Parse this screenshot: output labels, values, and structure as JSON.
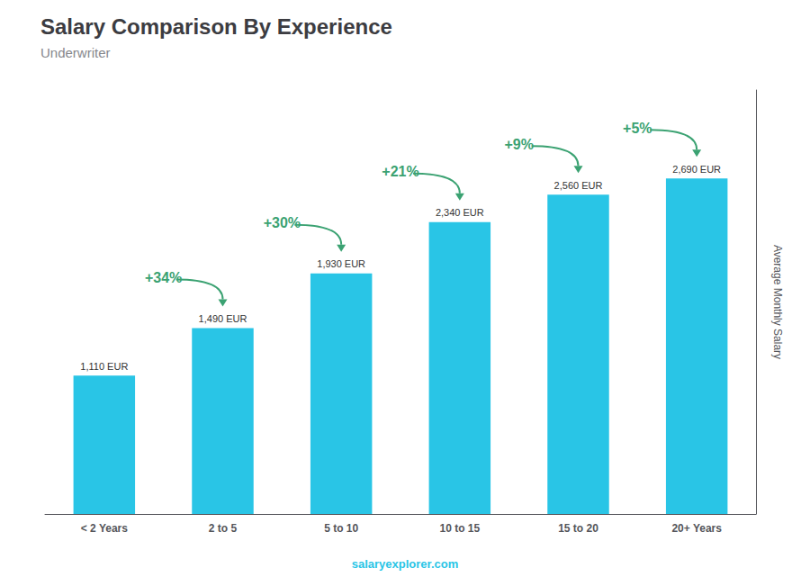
{
  "chart_data": {
    "type": "bar",
    "title": "Salary Comparison By Experience",
    "subtitle": "Underwriter",
    "ylabel": "Average Monthly Salary",
    "watermark": "salaryexplorer.com",
    "categories": [
      "< 2 Years",
      "2 to 5",
      "5 to 10",
      "10 to 15",
      "15 to 20",
      "20+ Years"
    ],
    "values": [
      1110,
      1490,
      1930,
      2340,
      2560,
      2690
    ],
    "value_labels": [
      "1,110 EUR",
      "1,490 EUR",
      "1,930 EUR",
      "2,340 EUR",
      "2,560 EUR",
      "2,690 EUR"
    ],
    "annotations": [
      "+34%",
      "+30%",
      "+21%",
      "+9%",
      "+5%"
    ],
    "color": "#29c5e6",
    "ylim": [
      0,
      3400
    ],
    "grid": false,
    "tick_labels": "x",
    "data_labels": true
  }
}
